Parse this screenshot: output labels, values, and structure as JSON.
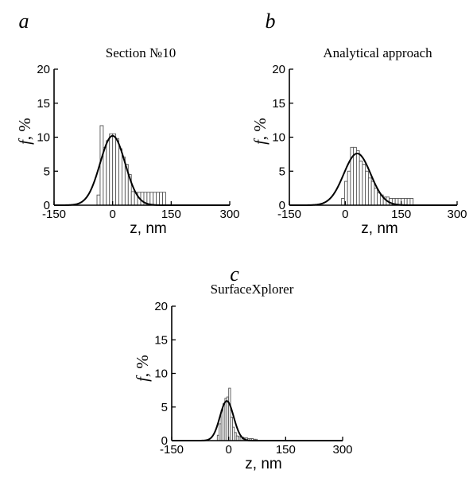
{
  "chart_data": [
    {
      "type": "bar",
      "panel_label": "a",
      "title": "Section №10",
      "xlabel": "z, nm",
      "ylabel_symbol": "f",
      "ylabel_unit": ", %",
      "xlim": [
        -150,
        300
      ],
      "ylim": [
        0,
        20
      ],
      "xticks": [
        "-150",
        "0",
        "150",
        "300"
      ],
      "yticks": [
        "0",
        "5",
        "10",
        "15",
        "20"
      ],
      "bins": [
        {
          "x0": -40,
          "x1": -32,
          "value": 1.5
        },
        {
          "x0": -32,
          "x1": -24,
          "value": 11.7
        },
        {
          "x0": -24,
          "x1": -16,
          "value": 8.5
        },
        {
          "x0": -16,
          "x1": -8,
          "value": 9.5
        },
        {
          "x0": -8,
          "x1": 0,
          "value": 10.5
        },
        {
          "x0": 0,
          "x1": 8,
          "value": 10.5
        },
        {
          "x0": 8,
          "x1": 16,
          "value": 9.8
        },
        {
          "x0": 16,
          "x1": 24,
          "value": 8.3
        },
        {
          "x0": 24,
          "x1": 32,
          "value": 7.1
        },
        {
          "x0": 32,
          "x1": 40,
          "value": 6.0
        },
        {
          "x0": 40,
          "x1": 48,
          "value": 4.5
        },
        {
          "x0": 48,
          "x1": 56,
          "value": 2.0
        },
        {
          "x0": 56,
          "x1": 64,
          "value": 1.9
        },
        {
          "x0": 64,
          "x1": 72,
          "value": 1.9
        },
        {
          "x0": 72,
          "x1": 80,
          "value": 1.9
        },
        {
          "x0": 80,
          "x1": 88,
          "value": 1.9
        },
        {
          "x0": 88,
          "x1": 96,
          "value": 1.9
        },
        {
          "x0": 96,
          "x1": 104,
          "value": 1.9
        },
        {
          "x0": 104,
          "x1": 112,
          "value": 1.9
        },
        {
          "x0": 112,
          "x1": 120,
          "value": 1.9
        },
        {
          "x0": 120,
          "x1": 128,
          "value": 1.9
        },
        {
          "x0": 128,
          "x1": 136,
          "value": 1.9
        }
      ],
      "fit": {
        "type": "gaussian",
        "amplitude": 10.2,
        "mean": 0,
        "sigma": 32
      }
    },
    {
      "type": "bar",
      "panel_label": "b",
      "title": "Analytical approach",
      "xlabel": "z, nm",
      "ylabel_symbol": "f",
      "ylabel_unit": ", %",
      "xlim": [
        -150,
        300
      ],
      "ylim": [
        0,
        20
      ],
      "xticks": [
        "-150",
        "0",
        "150",
        "300"
      ],
      "yticks": [
        "0",
        "5",
        "10",
        "15",
        "20"
      ],
      "bins": [
        {
          "x0": -10,
          "x1": -2,
          "value": 1.0
        },
        {
          "x0": -2,
          "x1": 6,
          "value": 3.5
        },
        {
          "x0": 6,
          "x1": 14,
          "value": 5.0
        },
        {
          "x0": 14,
          "x1": 22,
          "value": 8.5
        },
        {
          "x0": 22,
          "x1": 30,
          "value": 8.5
        },
        {
          "x0": 30,
          "x1": 38,
          "value": 8.0
        },
        {
          "x0": 38,
          "x1": 46,
          "value": 6.5
        },
        {
          "x0": 46,
          "x1": 54,
          "value": 6.0
        },
        {
          "x0": 54,
          "x1": 62,
          "value": 5.0
        },
        {
          "x0": 62,
          "x1": 70,
          "value": 4.0
        },
        {
          "x0": 70,
          "x1": 78,
          "value": 3.5
        },
        {
          "x0": 78,
          "x1": 86,
          "value": 2.5
        },
        {
          "x0": 86,
          "x1": 94,
          "value": 1.8
        },
        {
          "x0": 94,
          "x1": 102,
          "value": 1.5
        },
        {
          "x0": 102,
          "x1": 110,
          "value": 1.2
        },
        {
          "x0": 110,
          "x1": 118,
          "value": 1.2
        },
        {
          "x0": 118,
          "x1": 126,
          "value": 1.0
        },
        {
          "x0": 126,
          "x1": 134,
          "value": 1.0
        },
        {
          "x0": 134,
          "x1": 142,
          "value": 1.0
        },
        {
          "x0": 142,
          "x1": 150,
          "value": 1.0
        },
        {
          "x0": 150,
          "x1": 158,
          "value": 1.0
        },
        {
          "x0": 158,
          "x1": 166,
          "value": 1.0
        },
        {
          "x0": 166,
          "x1": 174,
          "value": 1.0
        },
        {
          "x0": 174,
          "x1": 182,
          "value": 1.0
        }
      ],
      "fit": {
        "type": "gaussian",
        "amplitude": 7.6,
        "mean": 32,
        "sigma": 36
      }
    },
    {
      "type": "bar",
      "panel_label": "c",
      "title": "SurfaceXplorer",
      "xlabel": "z, nm",
      "ylabel_symbol": "f",
      "ylabel_unit": ", %",
      "xlim": [
        -150,
        300
      ],
      "ylim": [
        0,
        20
      ],
      "xticks": [
        "-150",
        "0",
        "150",
        "300"
      ],
      "yticks": [
        "0",
        "5",
        "10",
        "15",
        "20"
      ],
      "bins": [
        {
          "x0": -30,
          "x1": -25,
          "value": 0.8
        },
        {
          "x0": -25,
          "x1": -20,
          "value": 2.5
        },
        {
          "x0": -20,
          "x1": -15,
          "value": 4.5
        },
        {
          "x0": -15,
          "x1": -10,
          "value": 5.5
        },
        {
          "x0": -10,
          "x1": -5,
          "value": 6.3
        },
        {
          "x0": -5,
          "x1": 0,
          "value": 6.5
        },
        {
          "x0": 0,
          "x1": 5,
          "value": 7.8
        },
        {
          "x0": 5,
          "x1": 10,
          "value": 3.5
        },
        {
          "x0": 10,
          "x1": 15,
          "value": 2.0
        },
        {
          "x0": 15,
          "x1": 20,
          "value": 1.2
        },
        {
          "x0": 20,
          "x1": 25,
          "value": 0.7
        },
        {
          "x0": 25,
          "x1": 30,
          "value": 0.6
        },
        {
          "x0": 30,
          "x1": 35,
          "value": 0.5
        },
        {
          "x0": 35,
          "x1": 40,
          "value": 0.5
        },
        {
          "x0": 40,
          "x1": 45,
          "value": 0.4
        },
        {
          "x0": 45,
          "x1": 50,
          "value": 0.4
        },
        {
          "x0": 50,
          "x1": 55,
          "value": 0.3
        },
        {
          "x0": 55,
          "x1": 60,
          "value": 0.3
        },
        {
          "x0": 60,
          "x1": 65,
          "value": 0.3
        },
        {
          "x0": 65,
          "x1": 70,
          "value": 0.2
        },
        {
          "x0": 70,
          "x1": 75,
          "value": 0.2
        }
      ],
      "fit": {
        "type": "gaussian",
        "amplitude": 5.9,
        "mean": -5,
        "sigma": 18
      }
    }
  ]
}
